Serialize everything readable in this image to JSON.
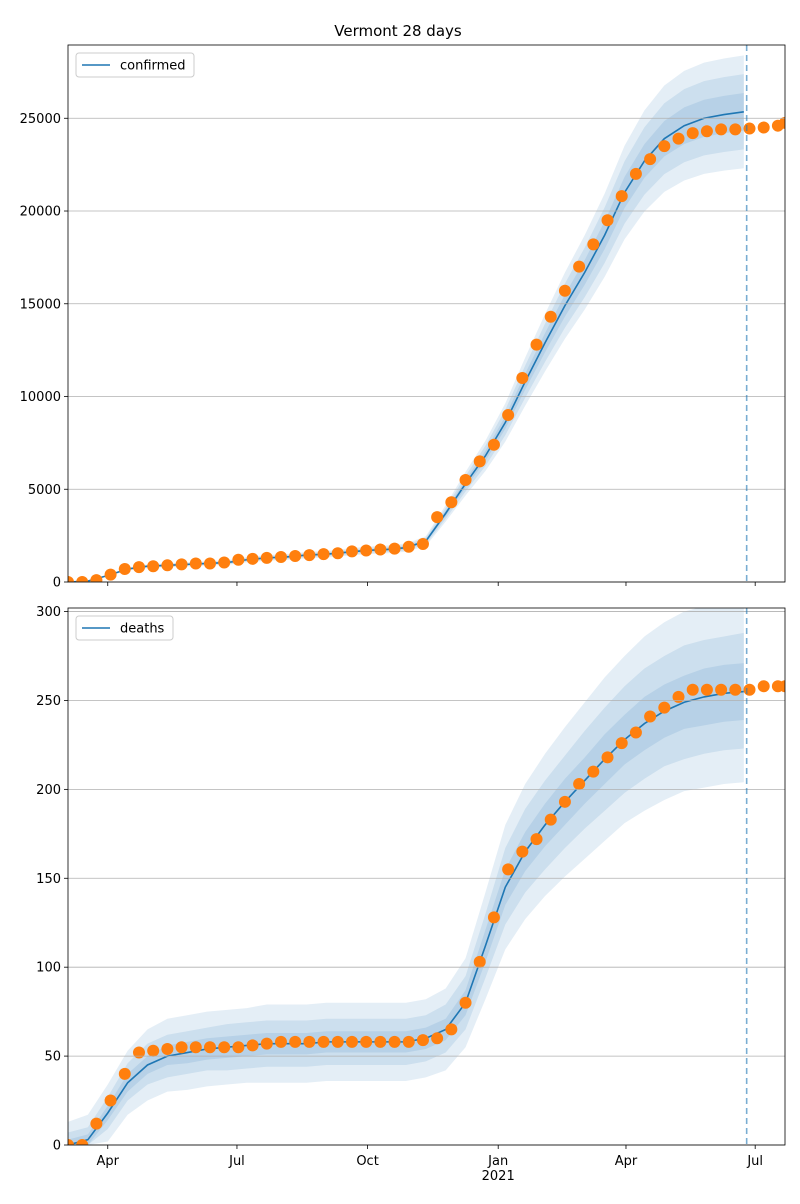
{
  "title": "Vermont 28 days",
  "chart_data": [
    {
      "type": "line",
      "legend": "upper left",
      "grid": true,
      "xlim": [
        63,
        568
      ],
      "ylim": [
        0,
        28950
      ],
      "yticks": [
        0,
        5000,
        10000,
        15000,
        20000,
        25000
      ],
      "vline": {
        "value": 541,
        "color": "#1f77b4",
        "style": "dashed"
      },
      "series": [
        {
          "name": "confirmed",
          "color": "#1f77b4",
          "x": [
            63,
            77,
            91,
            105,
            119,
            133,
            147,
            161,
            175,
            189,
            203,
            217,
            231,
            245,
            259,
            273,
            287,
            301,
            315,
            329,
            343,
            357,
            371,
            385,
            399,
            413,
            427,
            441,
            455,
            469,
            483,
            497,
            511,
            525,
            539
          ],
          "values": [
            0,
            50,
            350,
            700,
            850,
            900,
            950,
            1000,
            1050,
            1200,
            1300,
            1350,
            1450,
            1500,
            1600,
            1700,
            1750,
            1850,
            2200,
            3700,
            5300,
            6800,
            8600,
            10800,
            12900,
            14900,
            16700,
            18700,
            21000,
            22700,
            23900,
            24600,
            25000,
            25200,
            25350
          ],
          "bands": [
            {
              "lower": [
                0,
                44,
                308,
                616,
                748,
                792,
                836,
                880,
                924,
                1056,
                1144,
                1188,
                1276,
                1320,
                1408,
                1496,
                1540,
                1628,
                1936,
                3256,
                4664,
                5984,
                7568,
                9504,
                11352,
                13112,
                14696,
                16456,
                18480,
                19976,
                21032,
                21648,
                22000,
                22176,
                22308
              ],
              "upper": [
                0,
                56,
                392,
                784,
                952,
                1008,
                1064,
                1120,
                1176,
                1344,
                1456,
                1512,
                1624,
                1680,
                1792,
                1904,
                1960,
                2072,
                2464,
                4144,
                5936,
                7616,
                9632,
                12096,
                14448,
                16688,
                18704,
                20944,
                23520,
                25424,
                26768,
                27552,
                28000,
                28224,
                28392
              ]
            },
            {
              "lower": [
                0,
                46,
                322,
                644,
                782,
                828,
                874,
                920,
                966,
                1104,
                1196,
                1242,
                1334,
                1380,
                1472,
                1564,
                1610,
                1702,
                2024,
                3404,
                4876,
                6256,
                7912,
                9936,
                11868,
                13708,
                15364,
                17204,
                19320,
                20884,
                21988,
                22632,
                23000,
                23184,
                23322
              ],
              "upper": [
                0,
                54,
                378,
                756,
                918,
                972,
                1026,
                1080,
                1134,
                1296,
                1404,
                1458,
                1566,
                1620,
                1728,
                1836,
                1890,
                1998,
                2376,
                3996,
                5724,
                7344,
                9288,
                11664,
                13932,
                16092,
                18036,
                20196,
                22680,
                24516,
                25812,
                26568,
                27000,
                27216,
                27378
              ]
            },
            {
              "lower": [
                0,
                48,
                336,
                672,
                816,
                864,
                912,
                960,
                1008,
                1152,
                1248,
                1296,
                1392,
                1440,
                1536,
                1632,
                1680,
                1776,
                2112,
                3552,
                5088,
                6528,
                8256,
                10368,
                12384,
                14304,
                16032,
                17952,
                20160,
                21792,
                22944,
                23616,
                24000,
                24192,
                24336
              ],
              "upper": [
                0,
                52,
                364,
                728,
                884,
                936,
                988,
                1040,
                1092,
                1248,
                1352,
                1404,
                1508,
                1560,
                1664,
                1768,
                1820,
                1924,
                2288,
                3848,
                5512,
                7072,
                8944,
                11232,
                13416,
                15496,
                17368,
                19448,
                21840,
                23608,
                24856,
                25584,
                26000,
                26208,
                26364
              ]
            }
          ]
        },
        {
          "color": "#ff7f0e",
          "marker": "o",
          "x": [
            63,
            73,
            83,
            93,
            103,
            113,
            123,
            133,
            143,
            153,
            163,
            173,
            183,
            193,
            203,
            213,
            223,
            233,
            243,
            253,
            263,
            273,
            283,
            293,
            303,
            313,
            323,
            333,
            343,
            353,
            363,
            373,
            383,
            393,
            403,
            413,
            423,
            433,
            443,
            453,
            463,
            473,
            483,
            493,
            503,
            513,
            523,
            533,
            543,
            553,
            563,
            568
          ],
          "values": [
            0,
            0,
            100,
            400,
            700,
            800,
            850,
            900,
            950,
            1000,
            1000,
            1050,
            1200,
            1250,
            1300,
            1350,
            1400,
            1450,
            1500,
            1550,
            1650,
            1700,
            1750,
            1800,
            1900,
            2050,
            3500,
            4300,
            5500,
            6500,
            7400,
            9000,
            11000,
            12800,
            14300,
            15700,
            17000,
            18200,
            19500,
            20800,
            22000,
            22800,
            23500,
            23900,
            24200,
            24300,
            24400,
            24400,
            24450,
            24500,
            24600,
            24750
          ]
        }
      ]
    },
    {
      "type": "line",
      "legend": "upper left",
      "grid": true,
      "xlim": [
        63,
        568
      ],
      "ylim": [
        0,
        302
      ],
      "xticks": [
        {
          "value": 91,
          "label": "Apr"
        },
        {
          "value": 182,
          "label": "Jul"
        },
        {
          "value": 274,
          "label": "Oct"
        },
        {
          "value": 366,
          "label": "Jan\n2021"
        },
        {
          "value": 456,
          "label": "Apr"
        },
        {
          "value": 547,
          "label": "Jul"
        }
      ],
      "yticks": [
        0,
        50,
        100,
        150,
        200,
        250,
        300
      ],
      "vline": {
        "value": 541,
        "color": "#1f77b4",
        "style": "dashed"
      },
      "series": [
        {
          "name": "deaths",
          "color": "#1f77b4",
          "x": [
            63,
            77,
            91,
            105,
            119,
            133,
            147,
            161,
            175,
            189,
            203,
            217,
            231,
            245,
            259,
            273,
            287,
            301,
            315,
            329,
            343,
            357,
            371,
            385,
            399,
            413,
            427,
            441,
            455,
            469,
            483,
            497,
            511,
            525,
            539
          ],
          "values": [
            0,
            3,
            18,
            35,
            45,
            50,
            52,
            54,
            55,
            56,
            57,
            57,
            57,
            58,
            58,
            58,
            58,
            58,
            60,
            65,
            80,
            112,
            145,
            165,
            180,
            193,
            205,
            217,
            228,
            237,
            244,
            249,
            252,
            254,
            255
          ],
          "bands": [
            {
              "lower": [
                0,
                0,
                2,
                17,
                25,
                30,
                31,
                33,
                34,
                35,
                35,
                35,
                35,
                36,
                36,
                36,
                36,
                36,
                38,
                42,
                55,
                82,
                110,
                127,
                140,
                151,
                161,
                171,
                181,
                188,
                194,
                199,
                201,
                203,
                204
              ],
              "upper": [
                13,
                17,
                34,
                53,
                65,
                71,
                73,
                75,
                76,
                77,
                79,
                79,
                79,
                80,
                80,
                80,
                80,
                80,
                82,
                88,
                105,
                142,
                180,
                203,
                220,
                235,
                249,
                263,
                275,
                286,
                294,
                300,
                303,
                305,
                306
              ]
            },
            {
              "lower": [
                0,
                0,
                9,
                25,
                34,
                38,
                40,
                42,
                42,
                43,
                44,
                44,
                44,
                45,
                45,
                45,
                45,
                45,
                47,
                52,
                65,
                94,
                124,
                142,
                155,
                167,
                178,
                188,
                198,
                206,
                213,
                217,
                220,
                222,
                223
              ],
              "upper": [
                7,
                10,
                27,
                46,
                57,
                62,
                64,
                66,
                68,
                69,
                70,
                70,
                70,
                71,
                71,
                71,
                71,
                71,
                73,
                79,
                95,
                130,
                167,
                189,
                205,
                219,
                233,
                246,
                258,
                268,
                275,
                281,
                284,
                286,
                288
              ]
            },
            {
              "lower": [
                0,
                0,
                14,
                30,
                40,
                45,
                46,
                48,
                49,
                50,
                51,
                51,
                51,
                52,
                52,
                52,
                52,
                52,
                54,
                59,
                73,
                103,
                135,
                154,
                168,
                180,
                192,
                203,
                214,
                222,
                229,
                234,
                236,
                238,
                239
              ],
              "upper": [
                3,
                6,
                22,
                40,
                50,
                56,
                58,
                60,
                61,
                62,
                63,
                63,
                63,
                64,
                64,
                64,
                64,
                64,
                66,
                71,
                87,
                121,
                155,
                176,
                192,
                206,
                218,
                231,
                242,
                252,
                259,
                264,
                268,
                270,
                271
              ]
            }
          ]
        },
        {
          "color": "#ff7f0e",
          "marker": "o",
          "x": [
            63,
            73,
            83,
            93,
            103,
            113,
            123,
            133,
            143,
            153,
            163,
            173,
            183,
            193,
            203,
            213,
            223,
            233,
            243,
            253,
            263,
            273,
            283,
            293,
            303,
            313,
            323,
            333,
            343,
            353,
            363,
            373,
            383,
            393,
            403,
            413,
            423,
            433,
            443,
            453,
            463,
            473,
            483,
            493,
            503,
            513,
            523,
            533,
            543,
            553,
            563,
            568
          ],
          "values": [
            0,
            0,
            12,
            25,
            40,
            52,
            53,
            54,
            55,
            55,
            55,
            55,
            55,
            56,
            57,
            58,
            58,
            58,
            58,
            58,
            58,
            58,
            58,
            58,
            58,
            59,
            60,
            65,
            80,
            103,
            128,
            155,
            165,
            172,
            183,
            193,
            203,
            210,
            218,
            226,
            232,
            241,
            246,
            252,
            256,
            256,
            256,
            256,
            256,
            258,
            258,
            258
          ]
        }
      ]
    }
  ]
}
